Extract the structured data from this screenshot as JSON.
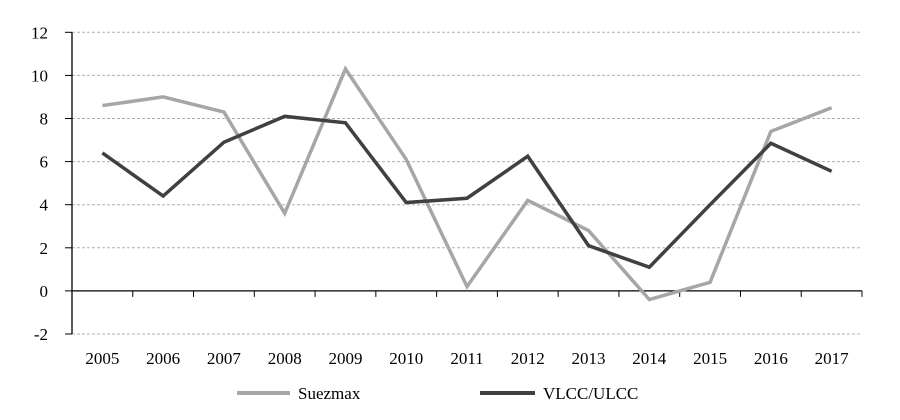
{
  "chart_data": {
    "type": "line",
    "title": "",
    "xlabel": "",
    "ylabel": "",
    "categories": [
      "2005",
      "2006",
      "2007",
      "2008",
      "2009",
      "2010",
      "2011",
      "2012",
      "2013",
      "2014",
      "2015",
      "2016",
      "2017"
    ],
    "ylim": [
      -2,
      12
    ],
    "yticks": [
      12,
      10,
      8,
      6,
      4,
      2,
      0,
      -2
    ],
    "ytick_labels": [
      "12",
      "10",
      "8",
      "6",
      "4",
      "2",
      "0",
      "-2"
    ],
    "negative_tick_color": "#e00000",
    "grid": "horizontal dashed",
    "legend_position": "bottom",
    "series": [
      {
        "name": "Suezmax",
        "color": "#a6a6a6",
        "values": [
          8.6,
          9.0,
          8.3,
          3.6,
          10.3,
          6.1,
          0.2,
          4.2,
          2.8,
          -0.4,
          0.4,
          7.4,
          8.5
        ]
      },
      {
        "name": "VLCC/ULCC",
        "color": "#404040",
        "values": [
          6.4,
          4.4,
          6.9,
          8.1,
          7.8,
          4.1,
          4.3,
          6.25,
          2.1,
          1.1,
          4.0,
          6.85,
          5.55
        ]
      }
    ]
  }
}
